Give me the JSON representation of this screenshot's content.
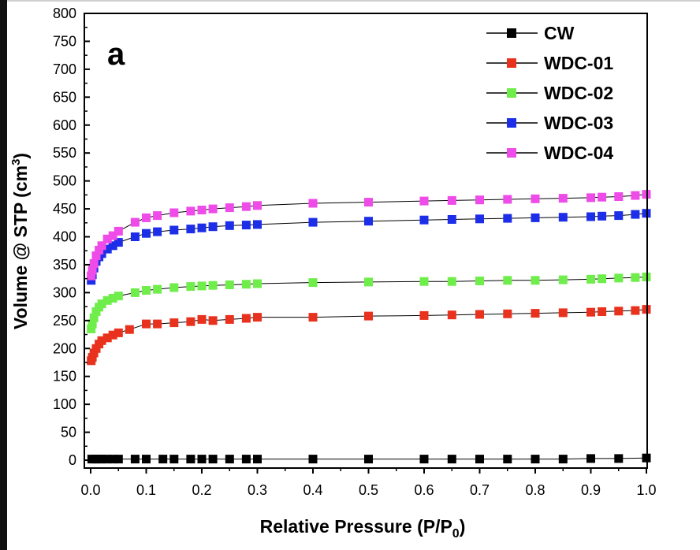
{
  "chart_data": {
    "type": "scatter",
    "panel_label": "a",
    "xlabel": "Relative Pressure (P/P",
    "xlabel_sub": "0",
    "xlabel_end": ")",
    "ylabel": "Volume @ STP (cm",
    "ylabel_sup": "3",
    "ylabel_end": ")",
    "xlim": [
      0.0,
      1.0
    ],
    "ylim": [
      0,
      800
    ],
    "xticks": [
      "0.0",
      "0.1",
      "0.2",
      "0.3",
      "0.4",
      "0.5",
      "0.6",
      "0.7",
      "0.8",
      "0.9",
      "1.0"
    ],
    "yticks": [
      "0",
      "50",
      "100",
      "150",
      "200",
      "250",
      "300",
      "350",
      "400",
      "450",
      "500",
      "550",
      "600",
      "650",
      "700",
      "750",
      "800"
    ],
    "legend_position": "top-right",
    "series": [
      {
        "name": "CW",
        "color": "#000000",
        "x": [
          0.002,
          0.008,
          0.015,
          0.02,
          0.03,
          0.04,
          0.05,
          0.08,
          0.1,
          0.13,
          0.15,
          0.18,
          0.2,
          0.22,
          0.25,
          0.28,
          0.3,
          0.4,
          0.5,
          0.6,
          0.65,
          0.7,
          0.75,
          0.8,
          0.85,
          0.9,
          0.95,
          1.0
        ],
        "y": [
          2,
          2,
          2,
          2,
          2,
          2,
          2,
          2,
          2,
          2,
          2,
          2,
          2,
          2,
          2,
          2,
          2,
          2,
          2,
          2,
          2,
          2,
          2,
          2,
          2,
          3,
          3,
          4
        ]
      },
      {
        "name": "WDC-01",
        "color": "#e8321e",
        "x": [
          0.001,
          0.003,
          0.006,
          0.01,
          0.015,
          0.02,
          0.03,
          0.04,
          0.05,
          0.07,
          0.1,
          0.12,
          0.15,
          0.18,
          0.2,
          0.22,
          0.25,
          0.28,
          0.3,
          0.4,
          0.5,
          0.6,
          0.65,
          0.7,
          0.75,
          0.8,
          0.85,
          0.9,
          0.92,
          0.95,
          0.98,
          1.0
        ],
        "y": [
          178,
          184,
          192,
          200,
          208,
          214,
          219,
          224,
          228,
          234,
          244,
          244,
          246,
          248,
          252,
          250,
          252,
          254,
          256,
          256,
          258,
          259,
          260,
          261,
          262,
          263,
          264,
          265,
          266,
          267,
          268,
          270
        ]
      },
      {
        "name": "WDC-02",
        "color": "#6fed4a",
        "x": [
          0.001,
          0.003,
          0.006,
          0.01,
          0.015,
          0.02,
          0.03,
          0.04,
          0.05,
          0.08,
          0.1,
          0.12,
          0.15,
          0.18,
          0.2,
          0.22,
          0.25,
          0.28,
          0.3,
          0.4,
          0.5,
          0.6,
          0.65,
          0.7,
          0.75,
          0.8,
          0.85,
          0.9,
          0.92,
          0.95,
          0.98,
          1.0
        ],
        "y": [
          235,
          244,
          255,
          266,
          274,
          280,
          286,
          290,
          294,
          300,
          304,
          306,
          309,
          311,
          312,
          313,
          314,
          315,
          316,
          318,
          319,
          320,
          320,
          321,
          322,
          322,
          323,
          324,
          325,
          326,
          327,
          328
        ]
      },
      {
        "name": "WDC-03",
        "color": "#1c2ee8",
        "x": [
          0.001,
          0.003,
          0.006,
          0.01,
          0.015,
          0.02,
          0.03,
          0.04,
          0.05,
          0.08,
          0.1,
          0.12,
          0.15,
          0.18,
          0.2,
          0.22,
          0.25,
          0.28,
          0.3,
          0.4,
          0.5,
          0.6,
          0.65,
          0.7,
          0.75,
          0.8,
          0.85,
          0.9,
          0.92,
          0.95,
          0.98,
          1.0
        ],
        "y": [
          322,
          332,
          344,
          356,
          364,
          370,
          378,
          384,
          390,
          400,
          406,
          409,
          412,
          414,
          416,
          418,
          420,
          421,
          422,
          426,
          428,
          430,
          431,
          432,
          433,
          434,
          435,
          436,
          437,
          438,
          440,
          442
        ]
      },
      {
        "name": "WDC-04",
        "color": "#ee4be8",
        "x": [
          0.001,
          0.003,
          0.006,
          0.01,
          0.015,
          0.02,
          0.03,
          0.04,
          0.05,
          0.08,
          0.1,
          0.12,
          0.15,
          0.18,
          0.2,
          0.22,
          0.25,
          0.28,
          0.3,
          0.4,
          0.5,
          0.6,
          0.65,
          0.7,
          0.75,
          0.8,
          0.85,
          0.9,
          0.92,
          0.95,
          0.98,
          1.0
        ],
        "y": [
          330,
          340,
          352,
          366,
          376,
          384,
          396,
          402,
          410,
          426,
          434,
          438,
          443,
          446,
          448,
          450,
          452,
          454,
          456,
          460,
          462,
          464,
          465,
          466,
          467,
          468,
          469,
          470,
          471,
          472,
          474,
          476
        ]
      }
    ]
  }
}
